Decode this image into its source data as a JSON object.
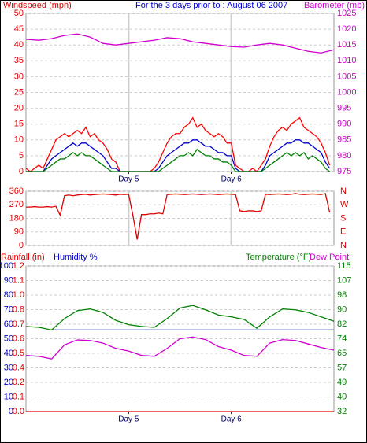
{
  "chart_data": [
    {
      "type": "line",
      "title": "For the 3 days prior to : August 06 2007",
      "ylabel": "Windspeed (mph)",
      "y2label": "Barometer (mb)",
      "ycolor": "#e00000",
      "y2color": "#d000d0",
      "grid": true,
      "xgrid": true,
      "xlim": [
        0,
        72
      ],
      "xticks": [
        {
          "value": 24,
          "label": "Day 5"
        },
        {
          "value": 48,
          "label": "Day 6"
        }
      ],
      "ylim": [
        0,
        50
      ],
      "yticks": [
        0,
        5,
        10,
        15,
        20,
        25,
        30,
        35,
        40,
        45,
        50
      ],
      "y2lim": [
        975,
        1025
      ],
      "y2ticks": [
        975,
        980,
        985,
        990,
        995,
        1000,
        1005,
        1010,
        1015,
        1020,
        1025
      ],
      "x": [
        0,
        1,
        2,
        3,
        4,
        5,
        6,
        7,
        8,
        9,
        10,
        11,
        12,
        13,
        14,
        15,
        16,
        17,
        18,
        19,
        20,
        21,
        22,
        23,
        24,
        25,
        26,
        27,
        28,
        29,
        30,
        31,
        32,
        33,
        34,
        35,
        36,
        37,
        38,
        39,
        40,
        41,
        42,
        43,
        44,
        45,
        46,
        47,
        48,
        49,
        50,
        51,
        52,
        53,
        54,
        55,
        56,
        57,
        58,
        59,
        60,
        61,
        62,
        63,
        64,
        65,
        66,
        67,
        68,
        69,
        70,
        71
      ],
      "series": [
        {
          "color": "#ff0000",
          "values": [
            1,
            0,
            1,
            2,
            1,
            4,
            7,
            10,
            11,
            12,
            11,
            12,
            13,
            12,
            14,
            11,
            12,
            10,
            9,
            7,
            4,
            3,
            0,
            0,
            0,
            0,
            0,
            0,
            0,
            0,
            1,
            3,
            6,
            9,
            11,
            12,
            12,
            14,
            15,
            17,
            14,
            15,
            13,
            12,
            11,
            12,
            11,
            9,
            9,
            2,
            1,
            0,
            0,
            1,
            0,
            2,
            4,
            8,
            11,
            13,
            14,
            13,
            15,
            16,
            17,
            14,
            13,
            12,
            11,
            9,
            6,
            2
          ]
        },
        {
          "color": "#0000cc",
          "values": [
            0,
            0,
            0,
            0,
            0,
            2,
            4,
            5,
            6,
            7,
            8,
            9,
            8,
            9,
            9,
            8,
            7,
            6,
            5,
            3,
            1,
            1,
            0,
            0,
            0,
            0,
            0,
            0,
            0,
            0,
            0,
            1,
            3,
            5,
            6,
            7,
            8,
            9,
            9,
            10,
            10,
            9,
            8,
            8,
            7,
            6,
            6,
            5,
            5,
            1,
            0,
            0,
            0,
            0,
            0,
            0,
            2,
            5,
            6,
            7,
            8,
            9,
            9,
            10,
            10,
            9,
            9,
            8,
            7,
            6,
            3,
            1
          ]
        },
        {
          "color": "#008000",
          "values": [
            0,
            0,
            0,
            0,
            0,
            1,
            2,
            3,
            4,
            4,
            5,
            6,
            5,
            6,
            5,
            5,
            4,
            3,
            2,
            1,
            0,
            0,
            0,
            0,
            0,
            0,
            0,
            0,
            0,
            0,
            0,
            0,
            1,
            2,
            3,
            4,
            5,
            5,
            6,
            5,
            7,
            6,
            5,
            5,
            4,
            4,
            3,
            3,
            2,
            0,
            0,
            0,
            0,
            0,
            0,
            0,
            1,
            2,
            3,
            4,
            5,
            6,
            5,
            6,
            5,
            6,
            4,
            5,
            4,
            3,
            1,
            0
          ]
        },
        {
          "color": "#d000d0",
          "axis": "y2",
          "x": [
            0,
            3,
            6,
            9,
            12,
            15,
            18,
            21,
            24,
            27,
            30,
            33,
            36,
            39,
            42,
            45,
            48,
            51,
            54,
            57,
            60,
            63,
            66,
            69,
            72
          ],
          "values": [
            1016.8,
            1016.5,
            1017,
            1018,
            1018.5,
            1017.5,
            1015.5,
            1015,
            1015.5,
            1016,
            1016.5,
            1017.3,
            1017,
            1016,
            1015.5,
            1015,
            1014.5,
            1014.3,
            1015,
            1015.5,
            1015,
            1014,
            1013,
            1012.5,
            1013.5
          ]
        }
      ]
    },
    {
      "type": "line",
      "ycolor": "#e00000",
      "y2color": "#e00000",
      "grid": true,
      "xlim": [
        0,
        72
      ],
      "ylim": [
        0,
        360
      ],
      "yticks": [
        0,
        90,
        180,
        270,
        360
      ],
      "y2lim": [
        0,
        360
      ],
      "y2ticks": [
        {
          "value": 0,
          "label": "N"
        },
        {
          "value": 90,
          "label": "E"
        },
        {
          "value": 180,
          "label": "S"
        },
        {
          "value": 270,
          "label": "W"
        },
        {
          "value": 360,
          "label": "N"
        }
      ],
      "x": [
        0,
        1,
        2,
        3,
        4,
        5,
        6,
        7,
        8,
        9,
        10,
        11,
        12,
        13,
        14,
        15,
        16,
        17,
        18,
        19,
        20,
        21,
        22,
        23,
        24,
        25,
        26,
        27,
        28,
        29,
        30,
        31,
        32,
        33,
        34,
        35,
        36,
        37,
        38,
        39,
        40,
        41,
        42,
        43,
        44,
        45,
        46,
        47,
        48,
        49,
        50,
        51,
        52,
        53,
        54,
        55,
        56,
        57,
        58,
        59,
        60,
        61,
        62,
        63,
        64,
        65,
        66,
        67,
        68,
        69,
        70,
        71
      ],
      "series": [
        {
          "color": "#dd0000",
          "values": [
            255,
            255,
            258,
            255,
            255,
            258,
            255,
            260,
            200,
            330,
            335,
            330,
            335,
            338,
            340,
            335,
            338,
            340,
            342,
            340,
            338,
            335,
            340,
            338,
            340,
            200,
            40,
            205,
            205,
            210,
            210,
            215,
            210,
            338,
            340,
            342,
            340,
            338,
            340,
            342,
            340,
            338,
            340,
            342,
            340,
            338,
            340,
            342,
            340,
            338,
            230,
            225,
            230,
            230,
            225,
            230,
            340,
            338,
            340,
            342,
            340,
            338,
            340,
            345,
            340,
            338,
            340,
            342,
            340,
            338,
            345,
            220
          ]
        }
      ]
    },
    {
      "type": "line",
      "ylabel": "Humidity %",
      "y3label": "Rainfall (in)",
      "y2label": "Temperature (°F)",
      "y2label_b": "Dew Point",
      "ycolor": "#0000cc",
      "y3color": "#e00000",
      "y2color": "#008000",
      "dewcolor": "#d000d0",
      "grid": true,
      "xlim": [
        0,
        72
      ],
      "xticks": [
        {
          "value": 24,
          "label": "Day 5"
        },
        {
          "value": 48,
          "label": "Day 6"
        }
      ],
      "ylim": [
        0,
        100
      ],
      "yticks": [
        0,
        10,
        20,
        30,
        40,
        50,
        60,
        70,
        80,
        90,
        100
      ],
      "y3lim": [
        0,
        1.2
      ],
      "y3ticks": [
        {
          "value": 0,
          "label": "0.0"
        },
        {
          "value": 0.12,
          "label": "0.1"
        },
        {
          "value": 0.24,
          "label": "0.2"
        },
        {
          "value": 0.36,
          "label": "0.4"
        },
        {
          "value": 0.48,
          "label": "0.5"
        },
        {
          "value": 0.6,
          "label": "0.6"
        },
        {
          "value": 0.72,
          "label": "0.7"
        },
        {
          "value": 0.84,
          "label": "0.8"
        },
        {
          "value": 0.96,
          "label": "1.0"
        },
        {
          "value": 1.08,
          "label": "1.1"
        },
        1.2
      ],
      "y2lim": [
        32,
        115
      ],
      "y2ticks": [
        32,
        {
          "value": 40.3,
          "label": "40"
        },
        {
          "value": 48.6,
          "label": "49"
        },
        {
          "value": 56.9,
          "label": "57"
        },
        {
          "value": 65.2,
          "label": "65"
        },
        {
          "value": 73.5,
          "label": "74"
        },
        {
          "value": 81.8,
          "label": "82"
        },
        {
          "value": 90.1,
          "label": "90"
        },
        {
          "value": 98.4,
          "label": "98"
        },
        {
          "value": 106.7,
          "label": "107"
        },
        115
      ],
      "x": [
        0,
        3,
        6,
        9,
        12,
        15,
        18,
        21,
        24,
        27,
        30,
        33,
        36,
        39,
        42,
        45,
        48,
        51,
        54,
        57,
        60,
        63,
        66,
        69,
        72
      ],
      "series": [
        {
          "color": "#e00000",
          "axis": "y3",
          "values": [
            0,
            0,
            0,
            0,
            0,
            0,
            0,
            0,
            0,
            0,
            0,
            0,
            0,
            0,
            0,
            0,
            0,
            0,
            0,
            0,
            0,
            0,
            0,
            0,
            0
          ]
        },
        {
          "color": "#000080",
          "values": [
            null,
            null,
            56,
            56,
            56,
            56,
            56,
            56,
            56,
            56,
            56,
            56,
            56,
            56,
            56,
            56,
            56,
            56,
            56,
            56,
            56,
            56,
            56,
            56,
            56
          ]
        },
        {
          "color": "#008000",
          "axis": "y2",
          "values": [
            80.5,
            80,
            78.5,
            85,
            89.5,
            90.5,
            88.5,
            84,
            81.5,
            80.5,
            80,
            85,
            91,
            92.5,
            90,
            87,
            86,
            84.5,
            79.5,
            86,
            90.5,
            90,
            88.5,
            86,
            83.5
          ]
        },
        {
          "color": "#d000d0",
          "axis": "y2",
          "values": [
            64,
            63.5,
            62,
            70,
            72.8,
            72.5,
            71,
            68,
            66.5,
            64,
            63.5,
            68,
            73.5,
            74.5,
            73,
            69,
            67,
            64,
            63.5,
            71,
            73,
            72.5,
            70.5,
            68.5,
            67
          ]
        }
      ]
    }
  ]
}
